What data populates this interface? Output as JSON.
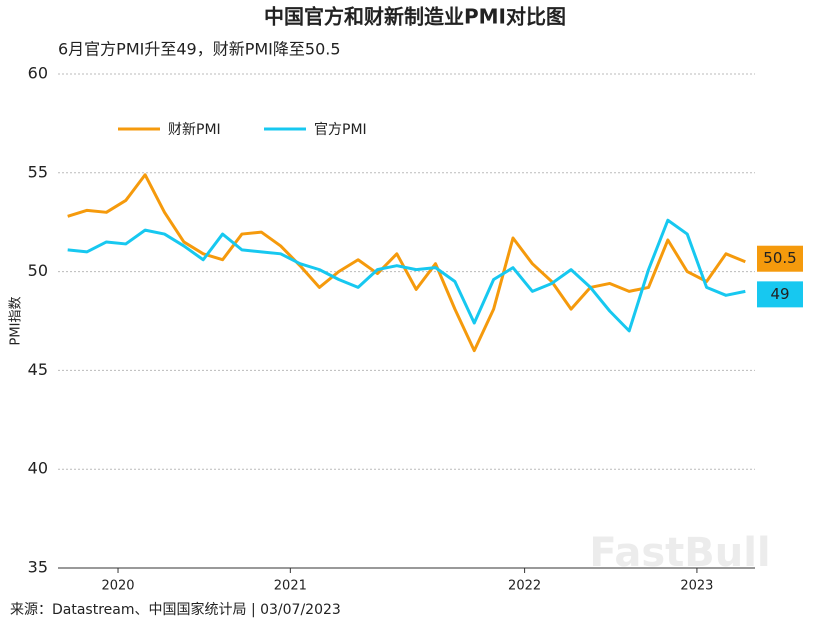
{
  "chart_data": {
    "type": "line",
    "title": "中国官方和财新制造业PMI对比图",
    "subtitle": "6月官方PMI升至49，财新PMI降至50.5",
    "ylabel": "PMI指数",
    "source": "来源：Datastream、中国国家统计局 | 03/07/2023",
    "watermark": "FastBull",
    "x": [
      0,
      1,
      2,
      3,
      4,
      5,
      6,
      7,
      8,
      9,
      10,
      11,
      12,
      13,
      14,
      15,
      16,
      17,
      18,
      19,
      20,
      21,
      22,
      23,
      24,
      25,
      26,
      27,
      28,
      29,
      30,
      31,
      32,
      33,
      34,
      35
    ],
    "xlim": [
      -0.5,
      35.5
    ],
    "xticks": [
      {
        "value": 2.6,
        "label": "2020"
      },
      {
        "value": 11.5,
        "label": "2021"
      },
      {
        "value": 23.6,
        "label": "2022"
      },
      {
        "value": 32.5,
        "label": "2023"
      }
    ],
    "ylim": [
      35,
      60
    ],
    "yticks": [
      35,
      40,
      45,
      50,
      55,
      60
    ],
    "grid": true,
    "legend": "top-left",
    "series": [
      {
        "name": "财新PMI",
        "color": "#f59a0c",
        "values": [
          52.8,
          53.1,
          53.0,
          53.6,
          54.9,
          53.0,
          51.5,
          50.9,
          50.6,
          51.9,
          52.0,
          51.3,
          50.3,
          49.2,
          50.0,
          50.6,
          49.9,
          50.9,
          49.1,
          50.4,
          48.1,
          46.0,
          48.1,
          51.7,
          50.4,
          49.5,
          48.1,
          49.2,
          49.4,
          49.0,
          49.2,
          51.6,
          50.0,
          49.5,
          50.9,
          50.5
        ]
      },
      {
        "name": "官方PMI",
        "color": "#17c8f0",
        "values": [
          51.1,
          51.0,
          51.5,
          51.4,
          52.1,
          51.9,
          51.3,
          50.6,
          51.9,
          51.1,
          51.0,
          50.9,
          50.4,
          50.1,
          49.6,
          49.2,
          50.1,
          50.3,
          50.1,
          50.2,
          49.5,
          47.4,
          49.6,
          50.2,
          49.0,
          49.4,
          50.1,
          49.2,
          48.0,
          47.0,
          50.1,
          52.6,
          51.9,
          49.2,
          48.8,
          49.0
        ]
      }
    ]
  }
}
